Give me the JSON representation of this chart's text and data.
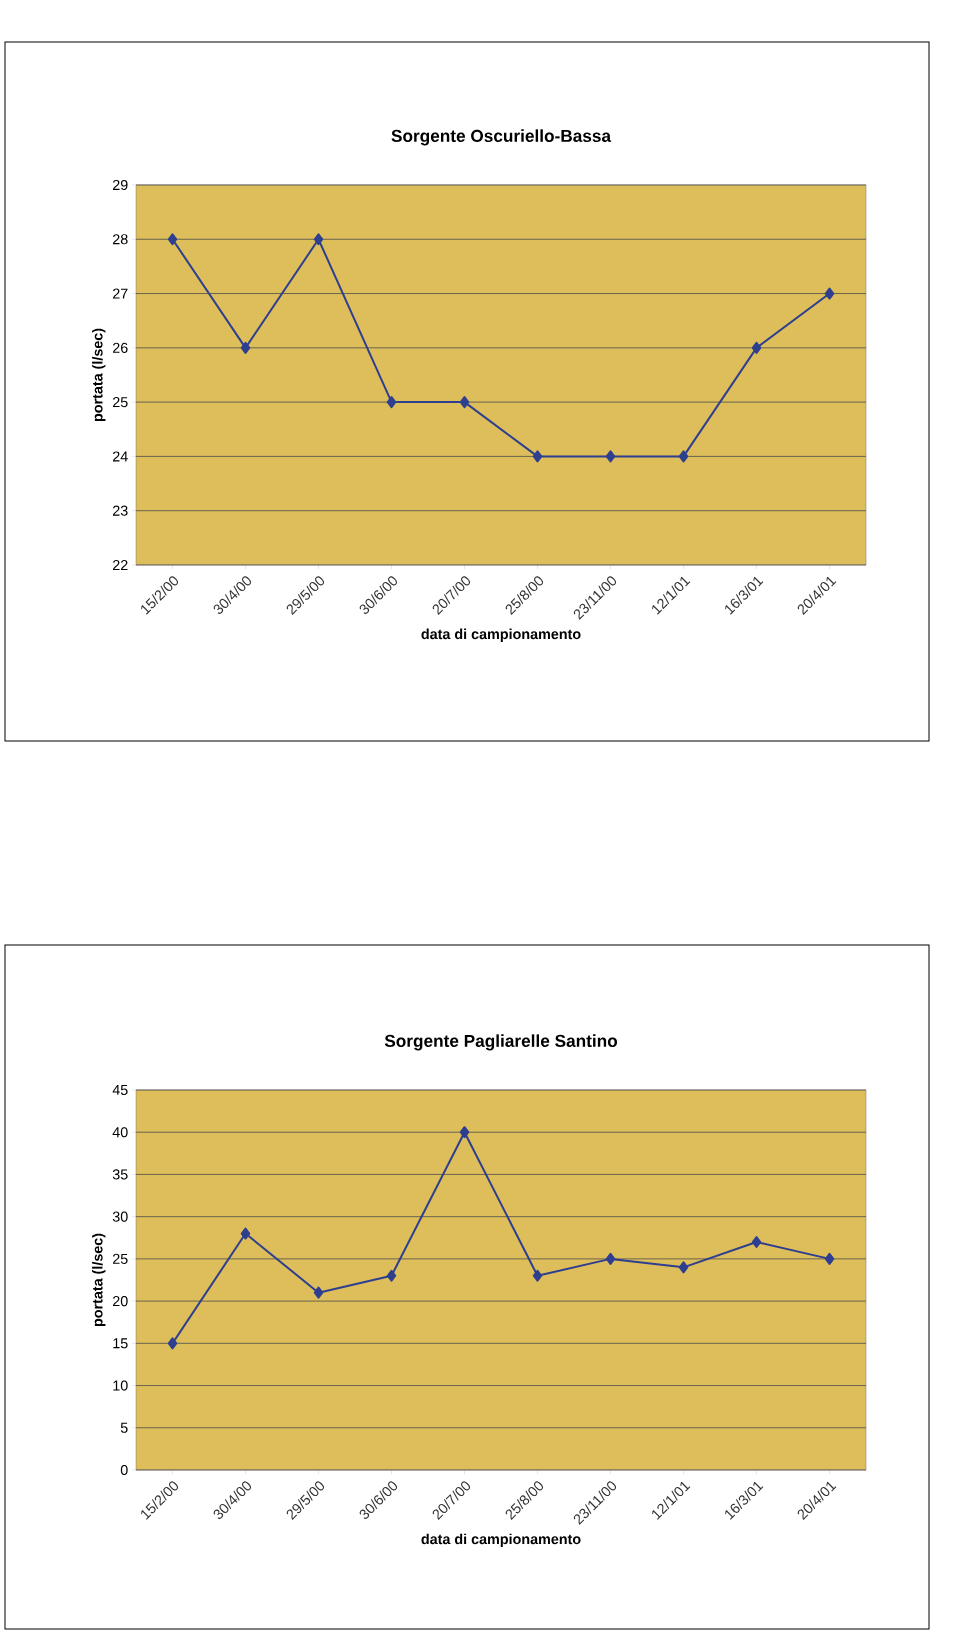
{
  "chart_data": [
    {
      "type": "line",
      "title": "Sorgente Oscuriello-Bassa",
      "xlabel": "data di campionamento",
      "ylabel": "portata (l/sec)",
      "categories": [
        "15/2/00",
        "30/4/00",
        "29/5/00",
        "30/6/00",
        "20/7/00",
        "25/8/00",
        "23/11/00",
        "12/1/01",
        "16/3/01",
        "20/4/01"
      ],
      "series": [
        {
          "color": "#2e3f8f",
          "values": [
            28,
            26,
            28,
            25,
            25,
            24,
            24,
            24,
            26,
            27
          ]
        }
      ],
      "ylim": [
        22,
        29
      ],
      "yticks": [
        22,
        23,
        24,
        25,
        26,
        27,
        28,
        29
      ],
      "grid": "y",
      "marker": "diamond",
      "line_style": "solid"
    },
    {
      "type": "line",
      "title": "Sorgente Pagliarelle Santino",
      "xlabel": "data di campionamento",
      "ylabel": "portata (l/sec)",
      "categories": [
        "15/2/00",
        "30/4/00",
        "29/5/00",
        "30/6/00",
        "20/7/00",
        "25/8/00",
        "23/11/00",
        "12/1/01",
        "16/3/01",
        "20/4/01"
      ],
      "series": [
        {
          "color": "#2e3f8f",
          "values": [
            15,
            28,
            21,
            23,
            40,
            23,
            25,
            24,
            27,
            25
          ]
        }
      ],
      "ylim": [
        0,
        45
      ],
      "yticks": [
        0,
        5,
        10,
        15,
        20,
        25,
        30,
        35,
        40,
        45
      ],
      "grid": "y",
      "marker": "diamond",
      "line_style": "solid"
    }
  ]
}
